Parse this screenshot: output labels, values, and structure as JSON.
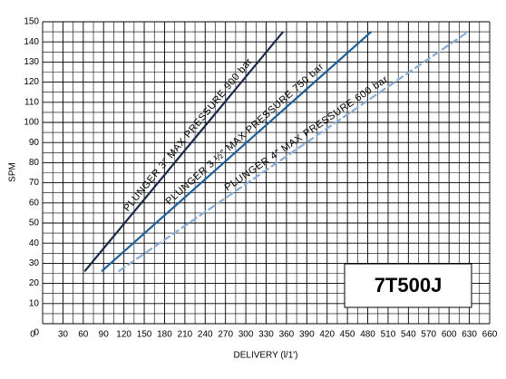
{
  "chart_data": {
    "type": "line",
    "x_label": "DELIVERY   (l/1')",
    "y_label": "SPM",
    "annotation": "7T500J",
    "xlim": [
      0,
      660
    ],
    "ylim": [
      0,
      150
    ],
    "xticks": [
      0,
      30,
      60,
      90,
      120,
      150,
      180,
      210,
      240,
      270,
      300,
      330,
      360,
      390,
      420,
      450,
      480,
      510,
      540,
      570,
      600,
      630,
      660
    ],
    "yticks": [
      0,
      10,
      20,
      30,
      40,
      50,
      60,
      70,
      80,
      90,
      100,
      110,
      120,
      130,
      140,
      150
    ],
    "x_minor_ticks": [
      15,
      45,
      75,
      105,
      135,
      165,
      195,
      225,
      255,
      285,
      315,
      345,
      375,
      405,
      435,
      465,
      495,
      525,
      555,
      585,
      615,
      645
    ],
    "y_minor_ticks": [
      5,
      15,
      25,
      35,
      45,
      55,
      65,
      75,
      85,
      95,
      105,
      115,
      125,
      135,
      145
    ],
    "grid": true,
    "series": [
      {
        "name": "PLUNGER 3\" MAX PRESSURE 900 bar",
        "color": "#1b2a4a",
        "dashed": false,
        "x": [
          62,
          355
        ],
        "values": [
          26,
          145
        ]
      },
      {
        "name": "PLUNGER 3 ½\" MAX PRESSURE 750 bar",
        "color": "#1f5f9a",
        "dashed": false,
        "x": [
          87,
          485
        ],
        "values": [
          26,
          145
        ]
      },
      {
        "name": "PLUNGER 4\" MAX PRESSURE 600 bar",
        "color": "#86acd8",
        "dashed": true,
        "x": [
          112,
          628
        ],
        "values": [
          26,
          145
        ]
      }
    ]
  }
}
